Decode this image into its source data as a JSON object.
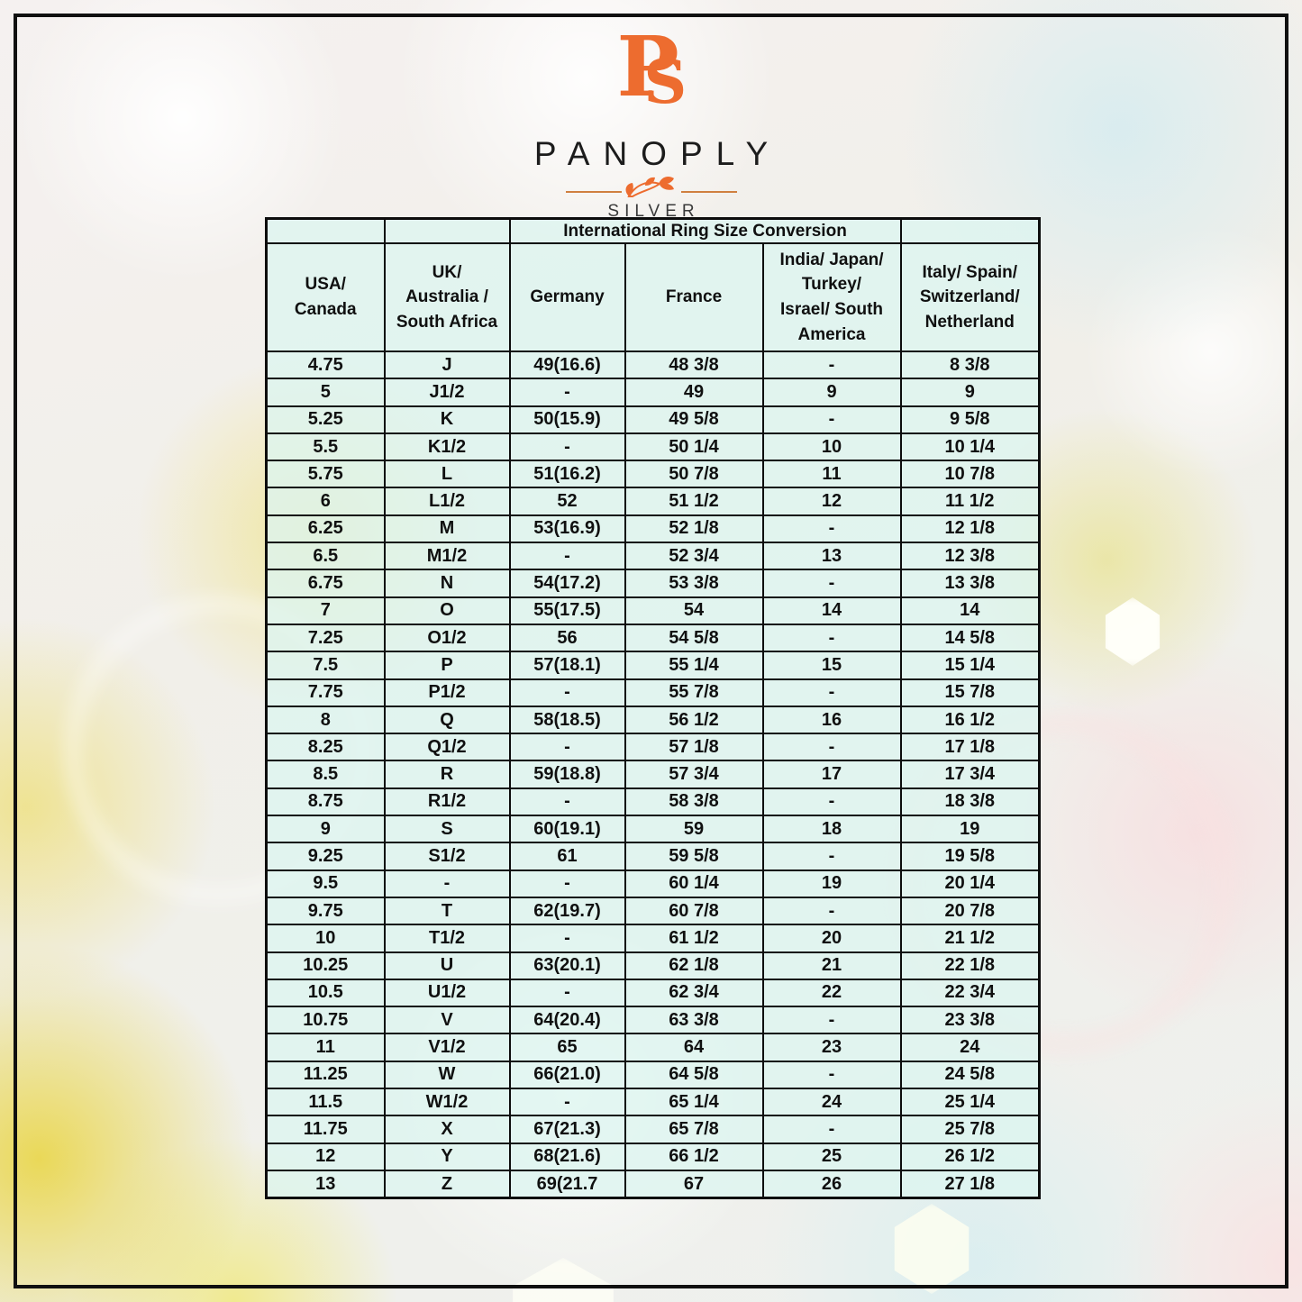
{
  "brand": {
    "monogram_p": "P",
    "monogram_s": "S",
    "name": "PANOPLY",
    "subtitle": "SILVER",
    "accent_color": "#ed6c2f",
    "text_color": "#1c1c1c"
  },
  "colors": {
    "table_cell_fill": "#ddf5f0",
    "table_border": "#0d0d0d",
    "frame_border": "#101010"
  },
  "chart_data": {
    "type": "table",
    "title": "International Ring Size Conversion",
    "columns": [
      "USA/\nCanada",
      "UK/\nAustralia /\nSouth Africa",
      "Germany",
      "France",
      "India/ Japan/\nTurkey/\nIsrael/ South\nAmerica",
      "Italy/ Spain/\nSwitzerland/\nNetherland"
    ],
    "rows": [
      [
        "4.75",
        "J",
        "49(16.6)",
        "48 3/8",
        "-",
        "8 3/8"
      ],
      [
        "5",
        "J1/2",
        "-",
        "49",
        "9",
        "9"
      ],
      [
        "5.25",
        "K",
        "50(15.9)",
        "49 5/8",
        "-",
        "9 5/8"
      ],
      [
        "5.5",
        "K1/2",
        "-",
        "50 1/4",
        "10",
        "10 1/4"
      ],
      [
        "5.75",
        "L",
        "51(16.2)",
        "50 7/8",
        "11",
        "10 7/8"
      ],
      [
        "6",
        "L1/2",
        "52",
        "51 1/2",
        "12",
        "11 1/2"
      ],
      [
        "6.25",
        "M",
        "53(16.9)",
        "52 1/8",
        "-",
        "12 1/8"
      ],
      [
        "6.5",
        "M1/2",
        "-",
        "52 3/4",
        "13",
        "12 3/8"
      ],
      [
        "6.75",
        "N",
        "54(17.2)",
        "53 3/8",
        "-",
        "13 3/8"
      ],
      [
        "7",
        "O",
        "55(17.5)",
        "54",
        "14",
        "14"
      ],
      [
        "7.25",
        "O1/2",
        "56",
        "54 5/8",
        "-",
        "14 5/8"
      ],
      [
        "7.5",
        "P",
        "57(18.1)",
        "55 1/4",
        "15",
        "15 1/4"
      ],
      [
        "7.75",
        "P1/2",
        "-",
        "55 7/8",
        "-",
        "15 7/8"
      ],
      [
        "8",
        "Q",
        "58(18.5)",
        "56 1/2",
        "16",
        "16 1/2"
      ],
      [
        "8.25",
        "Q1/2",
        "-",
        "57 1/8",
        "-",
        "17 1/8"
      ],
      [
        "8.5",
        "R",
        "59(18.8)",
        "57 3/4",
        "17",
        "17 3/4"
      ],
      [
        "8.75",
        "R1/2",
        "-",
        "58 3/8",
        "-",
        "18 3/8"
      ],
      [
        "9",
        "S",
        "60(19.1)",
        "59",
        "18",
        "19"
      ],
      [
        "9.25",
        "S1/2",
        "61",
        "59 5/8",
        "-",
        "19 5/8"
      ],
      [
        "9.5",
        "-",
        "-",
        "60 1/4",
        "19",
        "20 1/4"
      ],
      [
        "9.75",
        "T",
        "62(19.7)",
        "60 7/8",
        "-",
        "20 7/8"
      ],
      [
        "10",
        "T1/2",
        "-",
        "61 1/2",
        "20",
        "21 1/2"
      ],
      [
        "10.25",
        "U",
        "63(20.1)",
        "62 1/8",
        "21",
        "22 1/8"
      ],
      [
        "10.5",
        "U1/2",
        "-",
        "62 3/4",
        "22",
        "22 3/4"
      ],
      [
        "10.75",
        "V",
        "64(20.4)",
        "63 3/8",
        "-",
        "23 3/8"
      ],
      [
        "11",
        "V1/2",
        "65",
        "64",
        "23",
        "24"
      ],
      [
        "11.25",
        "W",
        "66(21.0)",
        "64 5/8",
        "-",
        "24 5/8"
      ],
      [
        "11.5",
        "W1/2",
        "-",
        "65 1/4",
        "24",
        "25 1/4"
      ],
      [
        "11.75",
        "X",
        "67(21.3)",
        "65 7/8",
        "-",
        "25 7/8"
      ],
      [
        "12",
        "Y",
        "68(21.6)",
        "66 1/2",
        "25",
        "26 1/2"
      ],
      [
        "13",
        "Z",
        "69(21.7",
        "67",
        "26",
        "27 1/8"
      ]
    ]
  }
}
